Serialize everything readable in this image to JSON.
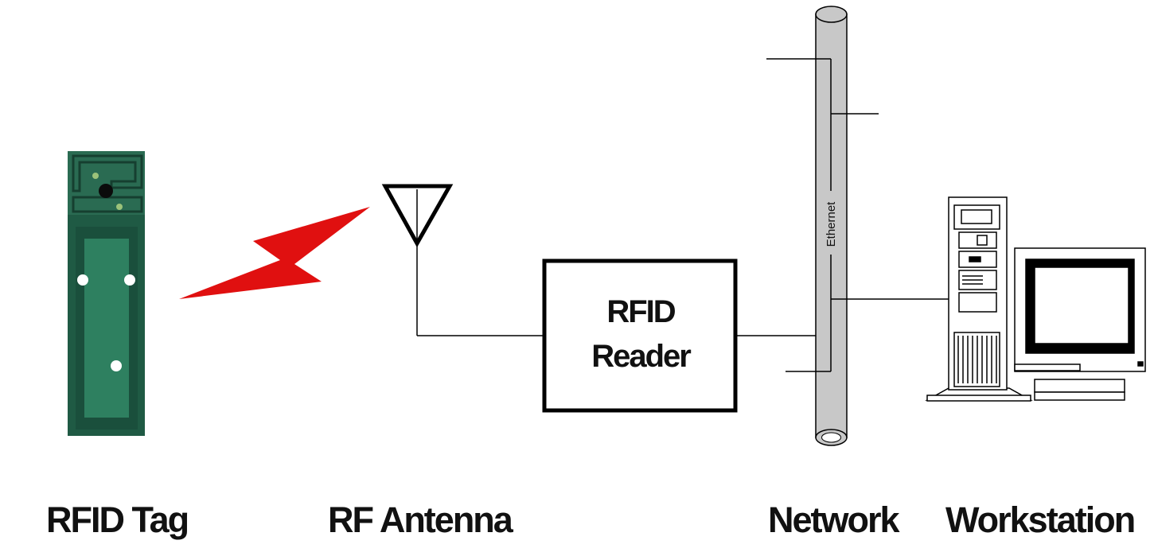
{
  "labels": {
    "tag": "RFID Tag",
    "antenna": "RF Antenna",
    "network": "Network",
    "workstation": "Workstation"
  },
  "reader": {
    "line1": "RFID",
    "line2": "Reader"
  },
  "network_bus_label": "Ethernet",
  "colors": {
    "tag_board": "#1f5a44",
    "tag_inner": "#2e8060",
    "rf_signal": "#e01010",
    "pipe": "#c8c8c8",
    "line": "#000000"
  }
}
